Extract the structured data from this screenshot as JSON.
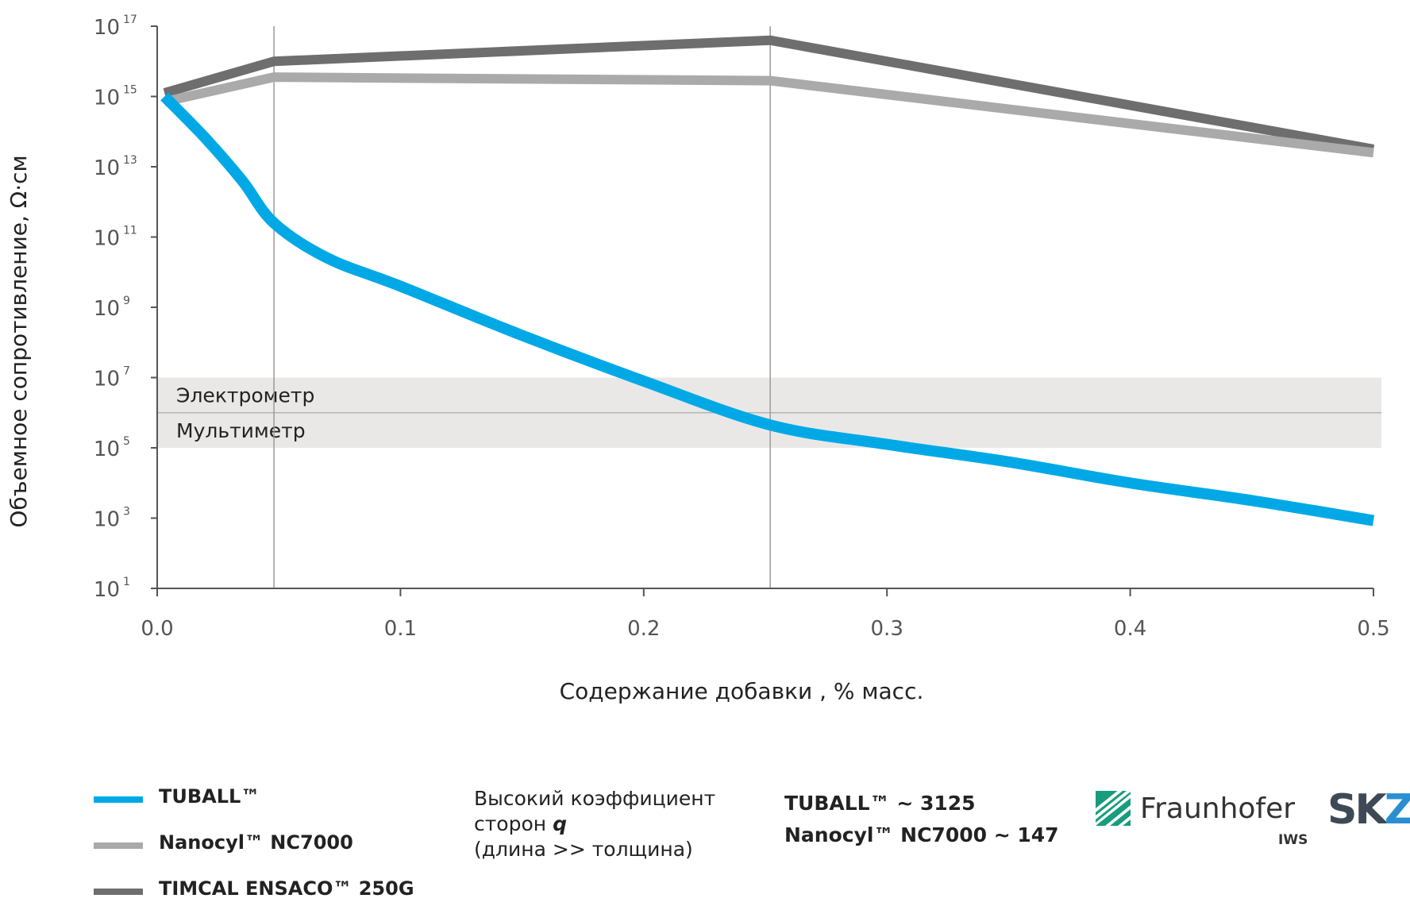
{
  "chart_data": {
    "type": "line",
    "ylabel": "Объемное сопротивление, Ω·см",
    "xlabel": "Содержание добавки , % масс.",
    "xlim": [
      0.0,
      0.5
    ],
    "ylim_exp": [
      1,
      17
    ],
    "yscale": "log",
    "x_ticks": [
      "0.0",
      "0.1",
      "0.2",
      "0.3",
      "0.4",
      "0.5"
    ],
    "y_ticks": [
      {
        "base": "10",
        "exp": "17"
      },
      {
        "base": "10",
        "exp": "15"
      },
      {
        "base": "10",
        "exp": "13"
      },
      {
        "base": "10",
        "exp": "11"
      },
      {
        "base": "10",
        "exp": "9"
      },
      {
        "base": "10",
        "exp": "7"
      },
      {
        "base": "10",
        "exp": "5"
      },
      {
        "base": "10",
        "exp": "3"
      },
      {
        "base": "10",
        "exp": "1"
      }
    ],
    "vertical_gridlines_x": [
      0.048,
      0.252
    ],
    "bands": [
      {
        "label": "Электрометр",
        "y_exp_from": 6,
        "y_exp_to": 7
      },
      {
        "label": "Мультиметр",
        "y_exp_from": 5,
        "y_exp_to": 6
      }
    ],
    "series": [
      {
        "name": "TUBALL™",
        "color": "#00a9e6",
        "x": [
          0.003,
          0.02,
          0.035,
          0.048,
          0.07,
          0.1,
          0.15,
          0.2,
          0.252,
          0.3,
          0.35,
          0.4,
          0.45,
          0.5
        ],
        "y_exp": [
          15.0,
          13.8,
          12.6,
          11.4,
          10.4,
          9.6,
          8.2,
          6.9,
          5.65,
          5.1,
          4.6,
          4.0,
          3.5,
          2.93
        ]
      },
      {
        "name": "Nanocyl™ NC7000",
        "color": "#aaaaaa",
        "x": [
          0.003,
          0.048,
          0.252,
          0.5
        ],
        "y_exp": [
          14.85,
          15.55,
          15.45,
          13.4
        ]
      },
      {
        "name": "TIMCAL ENSACO™ 250G",
        "color": "#6e6e6e",
        "x": [
          0.003,
          0.048,
          0.252,
          0.5
        ],
        "y_exp": [
          15.1,
          16.0,
          16.6,
          13.5
        ]
      }
    ]
  },
  "legend": [
    {
      "label": "TUBALL™",
      "color": "#00a9e6"
    },
    {
      "label": "Nanocyl™ NC7000",
      "color": "#aaaaaa"
    },
    {
      "label": "TIMCAL ENSACO™ 250G",
      "color": "#6e6e6e"
    }
  ],
  "note": {
    "line1": "Высокий коэффициент",
    "line2": "сторон",
    "q": "q",
    "line3": "(длина >> толщина)"
  },
  "ratios": {
    "line1": "TUBALL™ ~ 3125",
    "line2": "Nanocyl™ NC7000 ~ 147"
  },
  "logos": {
    "fraunhofer": "Fraunhofer",
    "fraunhofer_sub": "IWS",
    "fraunhofer_color": "#179c7d",
    "skz_s": "S",
    "skz_k": "K",
    "skz_z": "Z",
    "skz_dark": "#3d4a55",
    "skz_blue": "#2a8fd0"
  }
}
